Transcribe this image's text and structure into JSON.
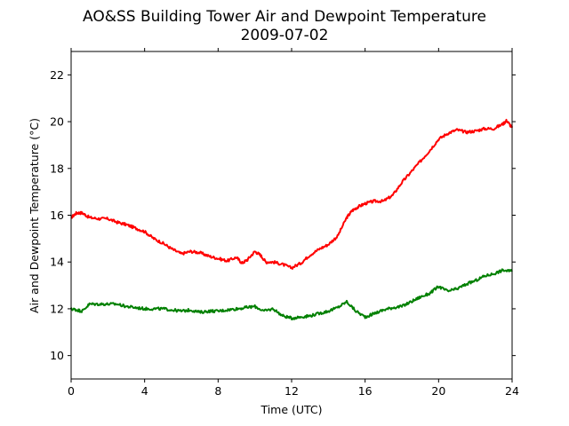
{
  "chart_data": {
    "type": "line",
    "title": "AO&SS Building Tower Air and Dewpoint Temperature",
    "subtitle": "2009-07-02",
    "xlabel": "Time (UTC)",
    "ylabel": "Air and Dewpoint Temperature (°C)",
    "xlim": [
      0,
      24
    ],
    "ylim": [
      9,
      23
    ],
    "xticks": [
      0,
      4,
      8,
      12,
      16,
      20,
      24
    ],
    "yticks": [
      10,
      12,
      14,
      16,
      18,
      20,
      22
    ],
    "grid": false,
    "colors": {
      "air": "#ff0000",
      "dewpoint": "#008000",
      "axes": "#000000",
      "background": "#ffffff"
    },
    "series": [
      {
        "color": "#ff0000",
        "x": [
          0,
          0.3,
          0.6,
          1,
          1.5,
          2,
          2.5,
          3,
          3.5,
          4,
          4.5,
          5,
          5.5,
          6,
          6.5,
          7,
          7.5,
          8,
          8.5,
          9,
          9.3,
          9.6,
          10,
          10.3,
          10.6,
          11,
          11.5,
          12,
          12.5,
          13,
          13.5,
          14,
          14.5,
          15,
          15.3,
          15.6,
          16,
          16.5,
          17,
          17.5,
          18,
          18.5,
          19,
          19.5,
          20,
          20.5,
          21,
          21.5,
          22,
          22.5,
          23,
          23.5,
          23.7,
          24
        ],
        "y": [
          15.9,
          16.1,
          16.1,
          15.9,
          15.85,
          15.85,
          15.7,
          15.6,
          15.45,
          15.3,
          15.0,
          14.8,
          14.55,
          14.35,
          14.45,
          14.4,
          14.25,
          14.15,
          14.05,
          14.2,
          13.95,
          14.1,
          14.45,
          14.3,
          14.0,
          14.0,
          13.9,
          13.75,
          13.95,
          14.3,
          14.55,
          14.75,
          15.1,
          15.9,
          16.2,
          16.35,
          16.5,
          16.6,
          16.6,
          16.85,
          17.4,
          17.85,
          18.3,
          18.75,
          19.25,
          19.5,
          19.65,
          19.55,
          19.6,
          19.7,
          19.7,
          19.9,
          20.05,
          19.75
        ]
      },
      {
        "color": "#008000",
        "x": [
          0,
          0.3,
          0.6,
          1,
          1.5,
          2,
          2.5,
          3,
          3.5,
          4,
          4.5,
          5,
          5.5,
          6,
          6.5,
          7,
          7.5,
          8,
          8.5,
          9,
          9.5,
          10,
          10.5,
          11,
          11.5,
          12,
          12.5,
          13,
          13.5,
          14,
          14.5,
          15,
          15.5,
          16,
          16.5,
          17,
          17.5,
          18,
          18.5,
          19,
          19.5,
          20,
          20.5,
          21,
          21.5,
          22,
          22.5,
          23,
          23.5,
          24
        ],
        "y": [
          12.0,
          11.95,
          11.9,
          12.2,
          12.2,
          12.2,
          12.2,
          12.1,
          12.05,
          12.0,
          12.0,
          12.0,
          11.95,
          11.9,
          11.95,
          11.85,
          11.9,
          11.9,
          11.95,
          12.0,
          12.05,
          12.1,
          11.9,
          12.0,
          11.7,
          11.6,
          11.65,
          11.7,
          11.8,
          11.9,
          12.05,
          12.3,
          11.9,
          11.65,
          11.8,
          11.95,
          12.05,
          12.1,
          12.3,
          12.5,
          12.65,
          12.95,
          12.75,
          12.85,
          13.05,
          13.2,
          13.4,
          13.5,
          13.65,
          13.6
        ]
      }
    ]
  }
}
